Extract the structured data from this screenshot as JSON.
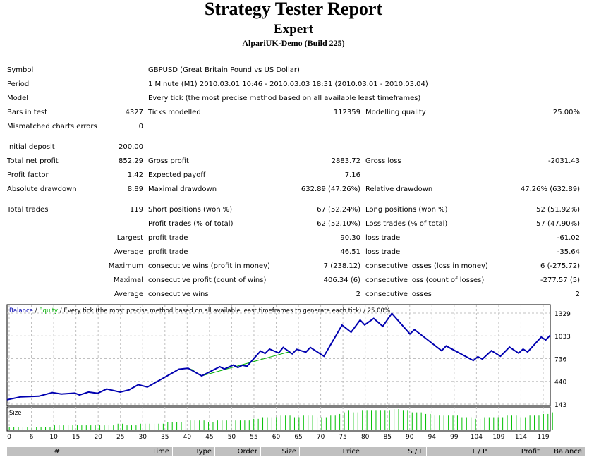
{
  "header": {
    "title": "Strategy Tester Report",
    "subtitle": "Expert",
    "server": "AlpariUK-Demo (Build 225)"
  },
  "info": {
    "symbol_label": "Symbol",
    "symbol": "GBPUSD (Great Britain Pound vs US Dollar)",
    "period_label": "Period",
    "period": "1 Minute (M1) 2010.03.01 10:46 - 2010.03.03 18:31 (2010.03.01 - 2010.03.04)",
    "model_label": "Model",
    "model": "Every tick (the most precise method based on all available least timeframes)"
  },
  "rows": [
    {
      "y": 160,
      "cells": [
        [
          "Bars in test",
          "4327"
        ],
        [
          "Ticks modelled",
          "112359"
        ],
        [
          "Modelling quality",
          "25.00%"
        ]
      ]
    },
    {
      "y": 180,
      "cells": [
        [
          "Mismatched charts errors",
          "0"
        ]
      ]
    },
    {
      "y": 209,
      "cells": [
        [
          "Initial deposit",
          "200.00"
        ]
      ]
    },
    {
      "y": 229,
      "cells": [
        [
          "Total net profit",
          "852.29"
        ],
        [
          "Gross profit",
          "2883.72"
        ],
        [
          "Gross loss",
          "-2031.43"
        ]
      ]
    },
    {
      "y": 249,
      "cells": [
        [
          "Profit factor",
          "1.42"
        ],
        [
          "Expected payoff",
          "7.16"
        ]
      ]
    },
    {
      "y": 269,
      "cells": [
        [
          "Absolute drawdown",
          "8.89"
        ],
        [
          "Maximal drawdown",
          "632.89 (47.26%)"
        ],
        [
          "Relative drawdown",
          "47.26% (632.89)"
        ]
      ]
    },
    {
      "y": 298,
      "cells": [
        [
          "Total trades",
          "119"
        ],
        [
          "Short positions (won %)",
          "67 (52.24%)"
        ],
        [
          "Long positions (won %)",
          "52 (51.92%)"
        ]
      ]
    },
    {
      "y": 318,
      "cells": [
        [
          "",
          ""
        ],
        [
          "Profit trades (% of total)",
          "62 (52.10%)"
        ],
        [
          "Loss trades (% of total)",
          "57 (47.90%)"
        ]
      ]
    },
    {
      "y": 338,
      "cells": [
        [
          "",
          "Largest"
        ],
        [
          "profit trade",
          "90.30"
        ],
        [
          "loss trade",
          "-61.02"
        ]
      ]
    },
    {
      "y": 358,
      "cells": [
        [
          "",
          "Average"
        ],
        [
          "profit trade",
          "46.51"
        ],
        [
          "loss trade",
          "-35.64"
        ]
      ]
    },
    {
      "y": 378,
      "cells": [
        [
          "",
          "Maximum"
        ],
        [
          "consecutive wins (profit in money)",
          "7 (238.12)"
        ],
        [
          "consecutive losses (loss in money)",
          "6 (-275.72)"
        ]
      ]
    },
    {
      "y": 398,
      "cells": [
        [
          "",
          "Maximal"
        ],
        [
          "consecutive profit (count of wins)",
          "406.34 (6)"
        ],
        [
          "consecutive loss (count of losses)",
          "-277.57 (5)"
        ]
      ]
    },
    {
      "y": 418,
      "cells": [
        [
          "",
          "Average"
        ],
        [
          "consecutive wins",
          "2"
        ],
        [
          "consecutive losses",
          "2"
        ]
      ]
    }
  ],
  "chart_data": {
    "type": "line",
    "legend": {
      "balance": "Balance",
      "sep": " / ",
      "equity": "Equity",
      "rest": " / Every tick (the most precise method based on all available least timeframes to generate each tick) / 25.00%"
    },
    "colors": {
      "balance": "#0000b0",
      "equity": "#00b000",
      "grid": "#c0c0c0",
      "size": "#00c000"
    },
    "yticks": [
      1329,
      1033,
      736,
      440,
      143
    ],
    "ylim": [
      143,
      1329
    ],
    "xticks": [
      "0",
      "6",
      "10",
      "15",
      "20",
      "25",
      "30",
      "35",
      "40",
      "45",
      "50",
      "55",
      "60",
      "65",
      "70",
      "75",
      "80",
      "85",
      "90",
      "94",
      "99",
      "104",
      "109",
      "114",
      "119"
    ],
    "balance": [
      [
        0,
        200
      ],
      [
        3,
        237
      ],
      [
        7,
        246
      ],
      [
        10,
        293
      ],
      [
        12,
        274
      ],
      [
        15,
        287
      ],
      [
        16,
        262
      ],
      [
        18,
        300
      ],
      [
        20,
        284
      ],
      [
        22,
        340
      ],
      [
        25,
        300
      ],
      [
        27,
        330
      ],
      [
        29,
        396
      ],
      [
        31,
        365
      ],
      [
        38,
        598
      ],
      [
        40,
        611
      ],
      [
        43,
        511
      ],
      [
        47,
        630
      ],
      [
        48,
        600
      ],
      [
        50,
        652
      ],
      [
        51,
        620
      ],
      [
        52,
        650
      ],
      [
        53,
        636
      ],
      [
        56,
        835
      ],
      [
        57,
        804
      ],
      [
        58,
        860
      ],
      [
        60,
        810
      ],
      [
        61,
        882
      ],
      [
        63,
        798
      ],
      [
        64,
        857
      ],
      [
        66,
        820
      ],
      [
        67,
        882
      ],
      [
        70,
        767
      ],
      [
        74,
        1173
      ],
      [
        76,
        1080
      ],
      [
        78,
        1239
      ],
      [
        79,
        1176
      ],
      [
        81,
        1260
      ],
      [
        83,
        1157
      ],
      [
        85,
        1325
      ],
      [
        89,
        1057
      ],
      [
        90,
        1114
      ],
      [
        96,
        839
      ],
      [
        97,
        901
      ],
      [
        103,
        711
      ],
      [
        104,
        761
      ],
      [
        105,
        730
      ],
      [
        107,
        839
      ],
      [
        109,
        767
      ],
      [
        111,
        886
      ],
      [
        113,
        807
      ],
      [
        114,
        860
      ],
      [
        115,
        823
      ],
      [
        118,
        1017
      ],
      [
        119,
        979
      ],
      [
        120,
        1042
      ]
    ],
    "equity": [
      [
        40,
        611
      ],
      [
        41,
        590
      ],
      [
        42,
        540
      ],
      [
        43,
        511
      ],
      [
        62,
        820
      ],
      [
        63,
        798
      ]
    ],
    "size_label": "Size",
    "sizes": [
      0.02,
      0.02,
      0.02,
      0.02,
      0.02,
      0.02,
      0.02,
      0.02,
      0.02,
      0.02,
      0.03,
      0.03,
      0.03,
      0.03,
      0.03,
      0.03,
      0.03,
      0.03,
      0.03,
      0.03,
      0.03,
      0.03,
      0.03,
      0.03,
      0.04,
      0.04,
      0.03,
      0.03,
      0.03,
      0.04,
      0.04,
      0.04,
      0.04,
      0.04,
      0.04,
      0.05,
      0.05,
      0.05,
      0.05,
      0.06,
      0.06,
      0.06,
      0.06,
      0.06,
      0.05,
      0.05,
      0.06,
      0.06,
      0.06,
      0.06,
      0.06,
      0.06,
      0.06,
      0.06,
      0.07,
      0.07,
      0.08,
      0.08,
      0.08,
      0.08,
      0.09,
      0.09,
      0.09,
      0.08,
      0.08,
      0.09,
      0.09,
      0.09,
      0.08,
      0.08,
      0.08,
      0.09,
      0.09,
      0.1,
      0.11,
      0.12,
      0.11,
      0.11,
      0.12,
      0.12,
      0.12,
      0.12,
      0.12,
      0.12,
      0.12,
      0.13,
      0.13,
      0.12,
      0.12,
      0.11,
      0.11,
      0.11,
      0.1,
      0.1,
      0.09,
      0.09,
      0.09,
      0.09,
      0.09,
      0.09,
      0.08,
      0.08,
      0.08,
      0.07,
      0.07,
      0.08,
      0.08,
      0.08,
      0.08,
      0.08,
      0.09,
      0.09,
      0.09,
      0.08,
      0.08,
      0.09,
      0.09,
      0.09,
      0.1,
      0.1,
      0.11
    ]
  },
  "table_header": [
    "#",
    "Time",
    "Type",
    "Order",
    "Size",
    "Price",
    "S / L",
    "T / P",
    "Profit",
    "Balance"
  ]
}
